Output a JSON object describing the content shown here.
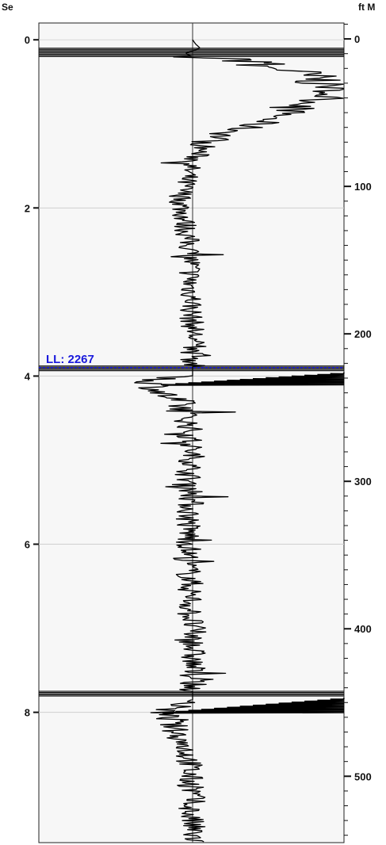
{
  "header": {
    "left_label": "Se",
    "right_label": "ft M"
  },
  "chart_data": {
    "type": "line",
    "title": "",
    "left_axis": {
      "ticks": [
        0,
        2,
        4,
        6,
        8
      ],
      "range": [
        -0.2,
        9.55
      ]
    },
    "right_axis": {
      "ticks": [
        0,
        100,
        200,
        300,
        400,
        500
      ],
      "range": [
        -10.8,
        545
      ]
    },
    "x_range": [
      -1,
      1
    ],
    "grid": true,
    "marker": {
      "label": "LL: 2267",
      "y": 3.9
    },
    "series": [
      {
        "name": "",
        "points": [
          [
            0.0,
            0.0
          ],
          [
            0.02,
            0.05
          ],
          [
            0.05,
            0.1
          ],
          [
            0.02,
            0.12
          ],
          [
            -0.05,
            0.16
          ],
          [
            0.0,
            0.2
          ],
          [
            0.2,
            0.23
          ],
          [
            0.55,
            0.27
          ],
          [
            0.35,
            0.3
          ],
          [
            0.6,
            0.34
          ],
          [
            0.7,
            0.4
          ],
          [
            0.85,
            0.48
          ],
          [
            0.9,
            0.55
          ],
          [
            0.92,
            0.62
          ],
          [
            0.85,
            0.7
          ],
          [
            0.7,
            0.82
          ],
          [
            0.55,
            0.92
          ],
          [
            0.4,
            1.02
          ],
          [
            0.22,
            1.12
          ],
          [
            0.1,
            1.22
          ],
          [
            0.04,
            1.35
          ],
          [
            -0.02,
            1.5
          ],
          [
            -0.05,
            1.7
          ],
          [
            -0.08,
            1.9
          ],
          [
            -0.06,
            2.1
          ],
          [
            -0.04,
            2.3
          ],
          [
            -0.02,
            2.5
          ],
          [
            -0.01,
            2.7
          ],
          [
            -0.02,
            2.9
          ],
          [
            0.0,
            3.1
          ],
          [
            -0.01,
            3.3
          ],
          [
            0.01,
            3.5
          ],
          [
            0.0,
            3.7
          ],
          [
            0.0,
            3.88
          ],
          [
            0.0,
            4.0
          ],
          [
            -0.3,
            4.05
          ],
          [
            -0.25,
            4.1
          ],
          [
            -0.22,
            4.2
          ],
          [
            -0.1,
            4.3
          ],
          [
            -0.05,
            4.45
          ],
          [
            -0.02,
            4.6
          ],
          [
            -0.02,
            4.8
          ],
          [
            0.0,
            5.0
          ],
          [
            -0.03,
            5.2
          ],
          [
            0.0,
            5.4
          ],
          [
            -0.02,
            5.6
          ],
          [
            -0.03,
            5.8
          ],
          [
            -0.02,
            6.0
          ],
          [
            -0.04,
            6.2
          ],
          [
            -0.02,
            6.4
          ],
          [
            -0.01,
            6.6
          ],
          [
            -0.02,
            6.8
          ],
          [
            0.0,
            7.0
          ],
          [
            0.0,
            7.2
          ],
          [
            0.0,
            7.4
          ],
          [
            0.0,
            7.6
          ],
          [
            0.0,
            7.75
          ],
          [
            0.0,
            7.85
          ],
          [
            -0.2,
            8.0
          ],
          [
            -0.15,
            8.1
          ],
          [
            -0.12,
            8.2
          ],
          [
            -0.05,
            8.4
          ],
          [
            -0.02,
            8.6
          ],
          [
            -0.02,
            8.8
          ],
          [
            0.0,
            9.0
          ],
          [
            -0.02,
            9.2
          ],
          [
            0.0,
            9.4
          ],
          [
            0.0,
            9.55
          ]
        ]
      }
    ],
    "noise_segments": [
      {
        "from": 0.2,
        "to": 0.55,
        "amp": 0.22
      },
      {
        "from": 0.55,
        "to": 1.25,
        "amp": 0.12
      },
      {
        "from": 1.25,
        "to": 3.88,
        "amp": 0.08
      },
      {
        "from": 4.0,
        "to": 4.45,
        "amp": 0.12
      },
      {
        "from": 4.45,
        "to": 7.75,
        "amp": 0.09
      },
      {
        "from": 7.85,
        "to": 8.2,
        "amp": 0.1
      },
      {
        "from": 8.2,
        "to": 9.55,
        "amp": 0.09
      }
    ],
    "dense_bands": [
      {
        "y_from": 0.1,
        "y_to": 0.2
      },
      {
        "y_from": 3.88,
        "y_to": 3.95
      },
      {
        "y_from": 7.75,
        "y_to": 7.82
      }
    ],
    "kicks": [
      {
        "y_from": 3.96,
        "y_to": 4.1,
        "x_to": 1.0
      },
      {
        "y_from": 7.83,
        "y_to": 8.0,
        "x_to": 1.0
      }
    ]
  }
}
